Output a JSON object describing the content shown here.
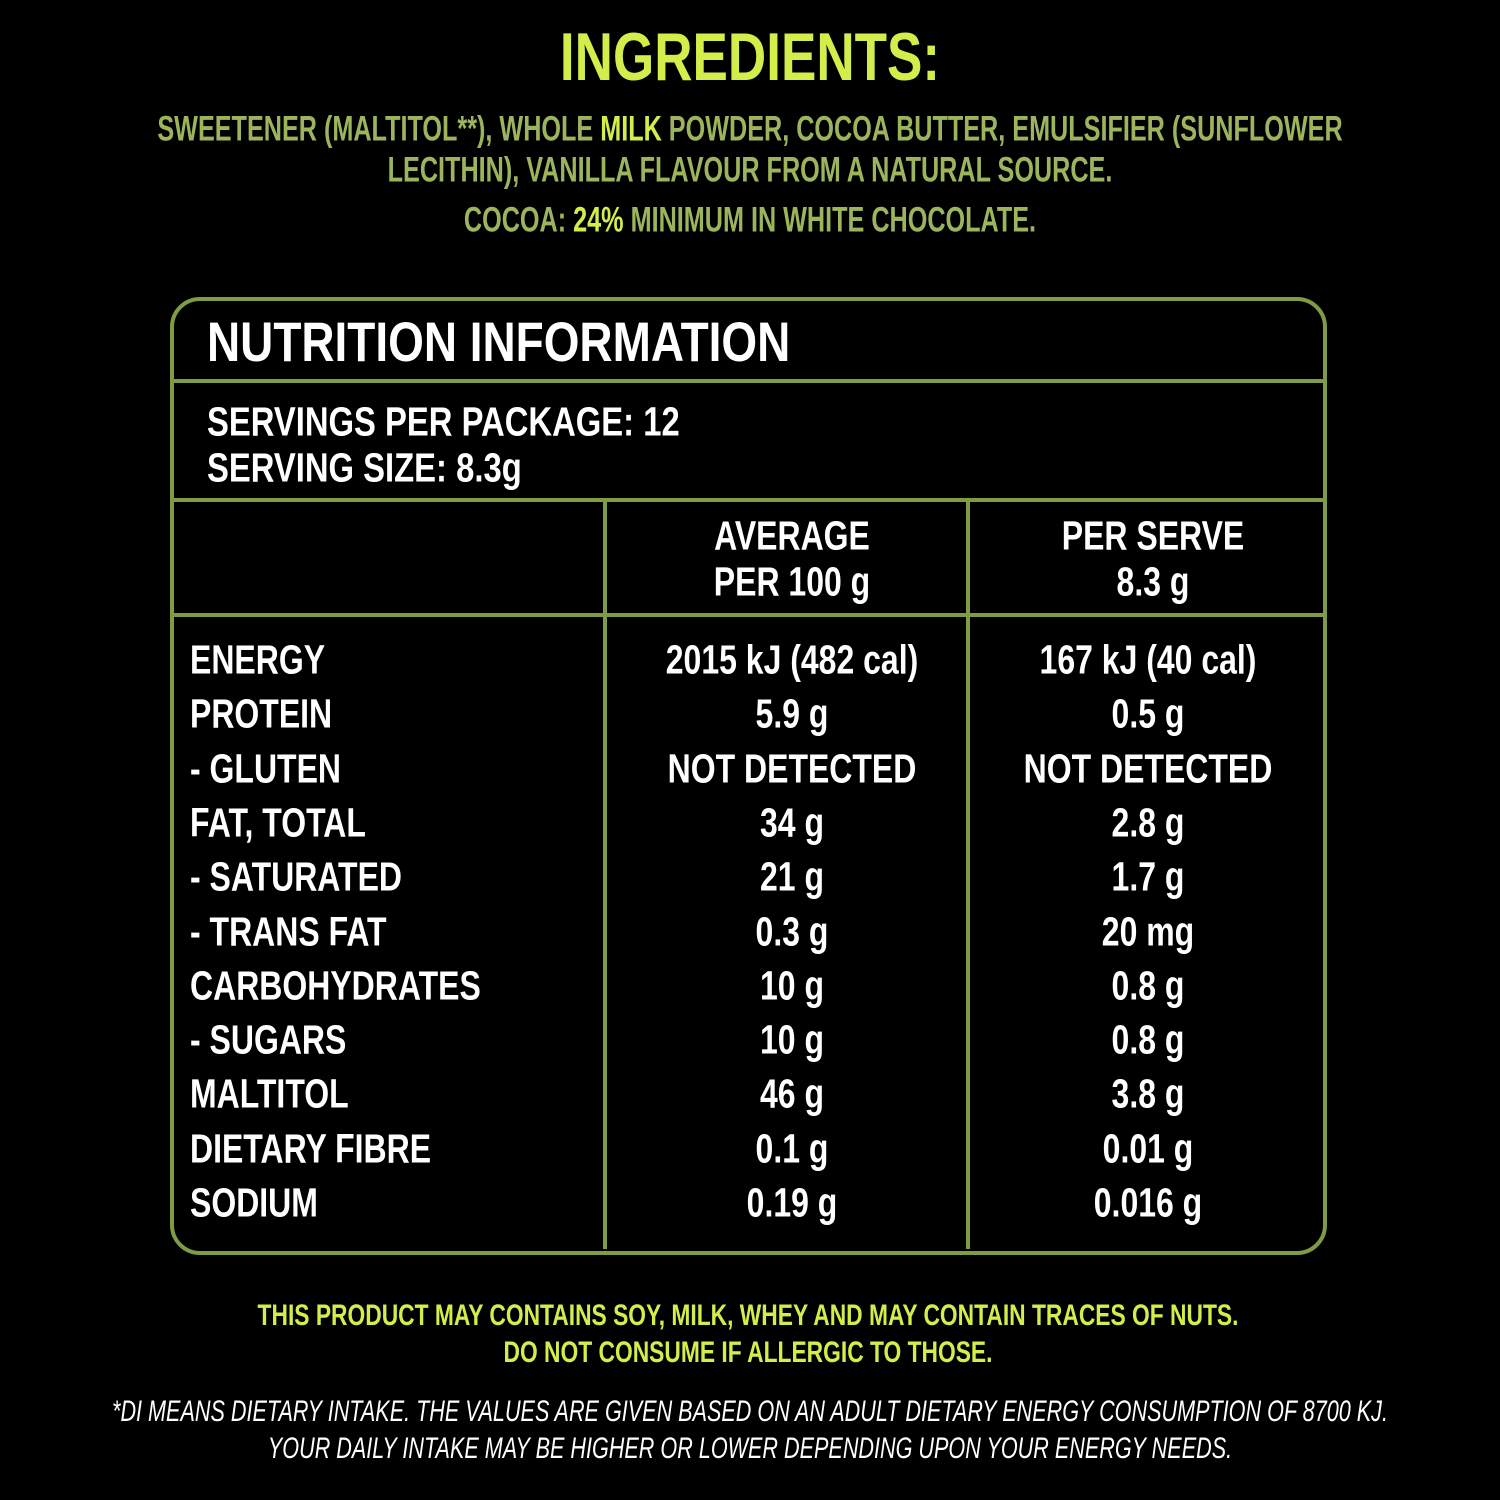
{
  "ingredients": {
    "title": "INGREDIENTS:",
    "lines": [
      [
        "SWEETENER (MALTITOL**), WHOLE ",
        "MILK",
        " POWDER, COCOA BUTTER, EMULSIFIER (SUNFLOWER"
      ],
      [
        "LECITHIN), VANILLA FLAVOUR FROM A NATURAL SOURCE."
      ],
      [
        "COCOA: ",
        "24%",
        " MINIMUM IN WHITE CHOCOLATE."
      ]
    ]
  },
  "nutrition": {
    "title": "NUTRITION INFORMATION",
    "servings": [
      "SERVINGS PER PACKAGE: 12",
      "SERVING SIZE: 8.3g"
    ],
    "headers": [
      [
        "AVERAGE",
        "PER 100 g"
      ],
      [
        "PER SERVE",
        "8.3 g"
      ]
    ],
    "rows": [
      [
        "ENERGY",
        "2015 kJ (482 cal)",
        "167 kJ (40 cal)"
      ],
      [
        "PROTEIN",
        "5.9 g",
        "0.5 g"
      ],
      [
        "- GLUTEN",
        "NOT DETECTED",
        "NOT DETECTED"
      ],
      [
        "FAT, TOTAL",
        "34 g",
        "2.8 g"
      ],
      [
        "- SATURATED",
        "21 g",
        "1.7 g"
      ],
      [
        "- TRANS FAT",
        "0.3 g",
        "20 mg"
      ],
      [
        "CARBOHYDRATES",
        "10 g",
        "0.8 g"
      ],
      [
        "- SUGARS",
        "10 g",
        "0.8 g"
      ],
      [
        "MALTITOL",
        "46 g",
        "3.8 g"
      ],
      [
        "DIETARY FIBRE",
        "0.1 g",
        "0.01 g"
      ],
      [
        "SODIUM",
        "0.19 g",
        "0.016 g"
      ]
    ]
  },
  "allergens": [
    "THIS PRODUCT MAY CONTAINS SOY, MILK, WHEY AND MAY CONTAIN TRACES OF NUTS.",
    "DO NOT CONSUME IF ALLERGIC TO THOSE."
  ],
  "footnote": [
    "*DI MEANS DIETARY INTAKE. THE VALUES ARE GIVEN BASED ON AN ADULT DIETARY ENERGY CONSUMPTION OF 8700 KJ.",
    "YOUR DAILY INTAKE MAY BE HIGHER OR LOWER DEPENDING UPON YOUR ENERGY NEEDS."
  ]
}
